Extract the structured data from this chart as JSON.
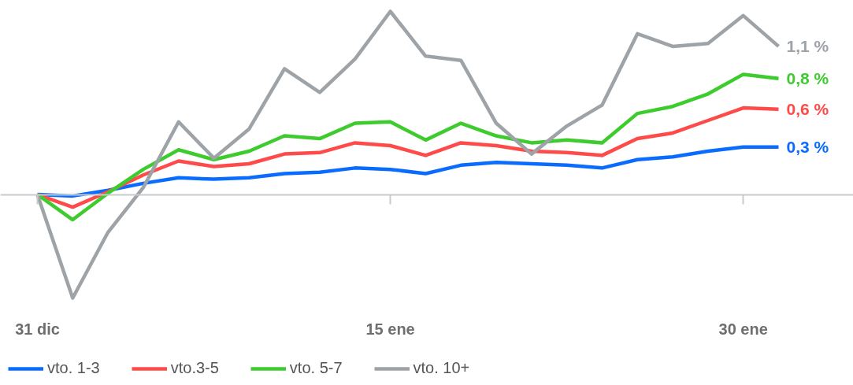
{
  "chart_data": {
    "type": "line",
    "categories": [
      "31 dic",
      null,
      null,
      null,
      null,
      null,
      null,
      null,
      null,
      null,
      "15 ene",
      null,
      null,
      null,
      null,
      null,
      null,
      null,
      null,
      null,
      "30 ene",
      null
    ],
    "series": [
      {
        "name": "vto. 1-3",
        "color": "#0a6cff",
        "values": [
          0,
          -0.01,
          0.03,
          0.08,
          0.12,
          0.11,
          0.12,
          0.15,
          0.16,
          0.19,
          0.18,
          0.15,
          0.21,
          0.23,
          0.22,
          0.21,
          0.19,
          0.25,
          0.27,
          0.31,
          0.34,
          0.34
        ],
        "value_labels": [
          null,
          null,
          null,
          null,
          null,
          null,
          null,
          null,
          null,
          null,
          null,
          null,
          null,
          null,
          null,
          null,
          null,
          null,
          null,
          null,
          null,
          "0,3 %"
        ]
      },
      {
        "name": "vto.3-5",
        "color": "#ff4a4a",
        "values": [
          0,
          -0.09,
          0.02,
          0.14,
          0.24,
          0.2,
          0.22,
          0.29,
          0.3,
          0.37,
          0.35,
          0.28,
          0.37,
          0.35,
          0.31,
          0.3,
          0.28,
          0.4,
          0.44,
          0.53,
          0.62,
          0.61
        ],
        "value_labels": [
          null,
          null,
          null,
          null,
          null,
          null,
          null,
          null,
          null,
          null,
          null,
          null,
          null,
          null,
          null,
          null,
          null,
          null,
          null,
          null,
          null,
          "0,6 %"
        ]
      },
      {
        "name": "vto. 5-7",
        "color": "#3ecb2e",
        "values": [
          0,
          -0.18,
          0.01,
          0.18,
          0.32,
          0.25,
          0.31,
          0.42,
          0.4,
          0.51,
          0.52,
          0.39,
          0.51,
          0.42,
          0.37,
          0.39,
          0.37,
          0.58,
          0.63,
          0.72,
          0.86,
          0.83
        ],
        "value_labels": [
          null,
          null,
          null,
          null,
          null,
          null,
          null,
          null,
          null,
          null,
          null,
          null,
          null,
          null,
          null,
          null,
          null,
          null,
          null,
          null,
          null,
          "0,8 %"
        ]
      },
      {
        "name": "vto. 10+",
        "color": "#9ea3a8",
        "values": [
          0,
          -0.74,
          -0.27,
          0.05,
          0.52,
          0.26,
          0.47,
          0.9,
          0.73,
          0.97,
          1.31,
          0.99,
          0.96,
          0.51,
          0.29,
          0.49,
          0.64,
          1.15,
          1.06,
          1.08,
          1.28,
          1.06
        ],
        "value_labels": [
          null,
          null,
          null,
          null,
          null,
          null,
          null,
          null,
          null,
          null,
          null,
          null,
          null,
          null,
          null,
          null,
          null,
          null,
          null,
          null,
          null,
          "1,1 %"
        ]
      }
    ],
    "tick_labels": "x",
    "grid": false,
    "legend": "bottom left",
    "marker": "none",
    "line_style": "solid"
  }
}
